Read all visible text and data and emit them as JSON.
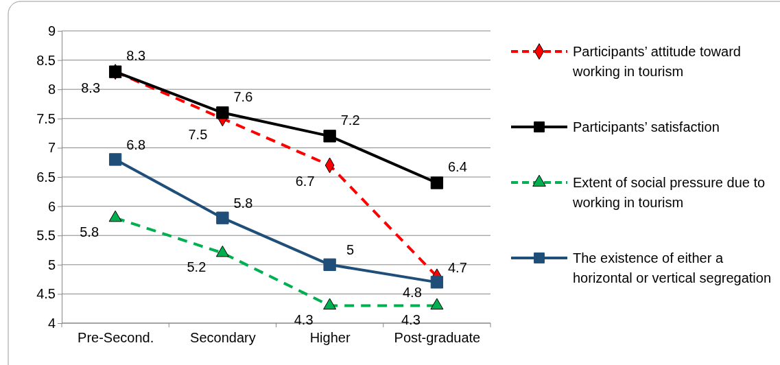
{
  "chart_data": {
    "type": "line",
    "categories": [
      "Pre-Second.",
      "Secondary",
      "Higher",
      "Post-graduate"
    ],
    "series": [
      {
        "name": "Participants’ attitude toward working in tourism",
        "color": "#ff0000",
        "values": [
          8.3,
          7.5,
          6.7,
          4.8
        ],
        "marker": "diamond",
        "line_style": "dashed"
      },
      {
        "name": "Participants’ satisfaction",
        "color": "#000000",
        "values": [
          8.3,
          7.6,
          7.2,
          6.4
        ],
        "marker": "square",
        "line_style": "solid"
      },
      {
        "name": "Extent of social pressure due to working in tourism",
        "color": "#00b050",
        "values": [
          5.8,
          5.2,
          4.3,
          4.3
        ],
        "marker": "triangle",
        "line_style": "dashed"
      },
      {
        "name": "The existence of either a horizontal or vertical segregation",
        "color": "#1f4e79",
        "values": [
          6.8,
          5.8,
          5,
          4.7
        ],
        "marker": "square",
        "line_style": "solid"
      }
    ],
    "ylim": [
      4,
      9
    ],
    "yticks": [
      4,
      4.5,
      5,
      5.5,
      6,
      6.5,
      7,
      7.5,
      8,
      8.5,
      9
    ],
    "grid": "y",
    "legend": "right",
    "data_labels": true
  }
}
